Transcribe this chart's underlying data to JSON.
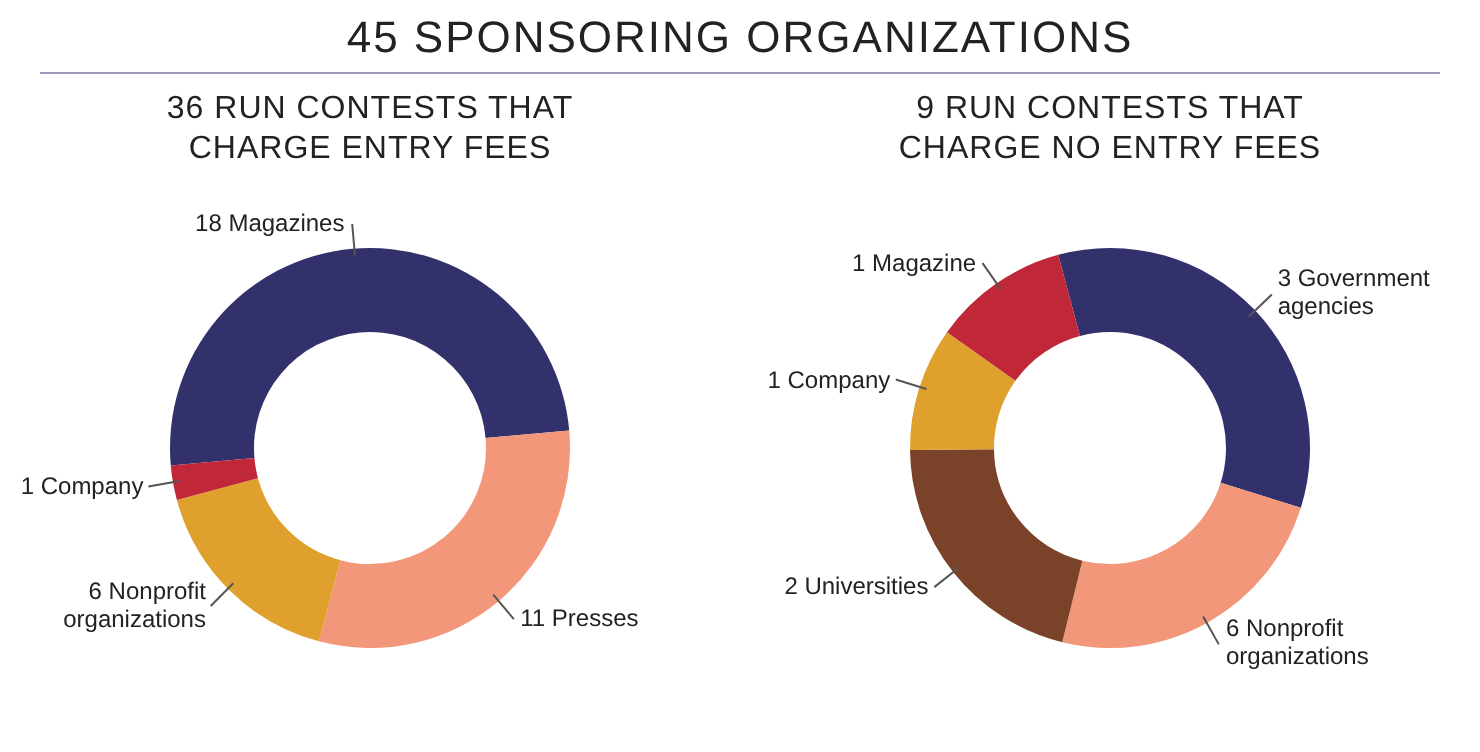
{
  "chart_data": [
    {
      "type": "donut",
      "annotations": [
        "45 SPONSORING ORGANIZATIONS"
      ],
      "title": "36 RUN CONTESTS THAT CHARGE ENTRY FEES",
      "categories": [
        "18 Magazines",
        "11 Presses",
        "6 Nonprofit organizations",
        "1 Company"
      ],
      "values": [
        50,
        30.5,
        16.7,
        2.8
      ],
      "colors": [
        "#33316b",
        "#f3977a",
        "#dfa02d",
        "#c0283a"
      ],
      "legend": false
    },
    {
      "type": "donut",
      "title": "9 RUN CONTESTS THAT CHARGE NO ENTRY FEES",
      "categories": [
        "3 Government agencies",
        "6 Nonprofit organizations",
        "2 Universities",
        "1 Company",
        "1 Magazine"
      ],
      "values": [
        34,
        24,
        21,
        10,
        11
      ],
      "colors": [
        "#33316b",
        "#f3977a",
        "#7a4229",
        "#dfa02d",
        "#c0283a"
      ],
      "legend": false
    }
  ]
}
